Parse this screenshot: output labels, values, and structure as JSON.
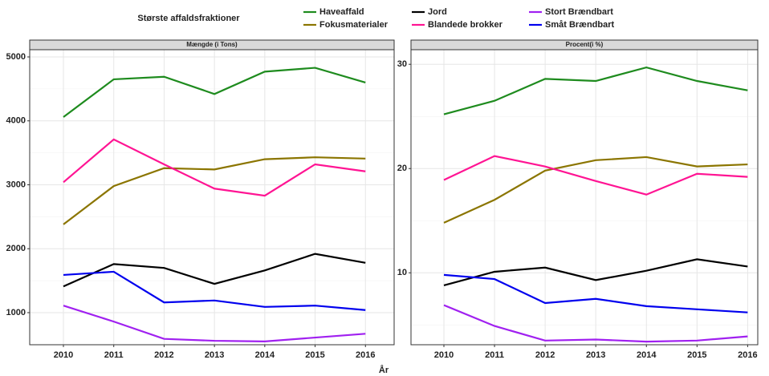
{
  "legend": {
    "title": "Største affaldsfraktioner",
    "position": "top"
  },
  "x_label": "År",
  "chart_data": [
    {
      "type": "line",
      "title": "Mængde (i Tons)",
      "x": [
        2010,
        2011,
        2012,
        2013,
        2014,
        2015,
        2016
      ],
      "xlim": [
        2009.33,
        2016.57
      ],
      "xticks": [
        2010,
        2011,
        2012,
        2013,
        2014,
        2015,
        2016
      ],
      "ylim": [
        498,
        5113
      ],
      "yticks": [
        1000,
        2000,
        3000,
        4000,
        5000
      ],
      "grid": true,
      "series": [
        {
          "name": "Haveaffald",
          "color": "#1e8b1e",
          "values": [
            4060,
            4650,
            4690,
            4420,
            4770,
            4830,
            4600
          ]
        },
        {
          "name": "Fokusmaterialer",
          "color": "#8b7500",
          "values": [
            2380,
            2980,
            3260,
            3240,
            3400,
            3430,
            3410
          ]
        },
        {
          "name": "Jord",
          "color": "#000000",
          "values": [
            1410,
            1760,
            1700,
            1450,
            1660,
            1920,
            1780
          ]
        },
        {
          "name": "Blandede brokker",
          "color": "#ff1493",
          "values": [
            3040,
            3710,
            3320,
            2940,
            2830,
            3320,
            3210
          ]
        },
        {
          "name": "Stort Brændbart",
          "color": "#a020f0",
          "values": [
            1110,
            860,
            590,
            560,
            550,
            610,
            670
          ]
        },
        {
          "name": "Småt Brændbart",
          "color": "#0000ee",
          "values": [
            1590,
            1640,
            1160,
            1190,
            1090,
            1110,
            1040
          ]
        }
      ]
    },
    {
      "type": "line",
      "title": "Procent(i %)",
      "x": [
        2010,
        2011,
        2012,
        2013,
        2014,
        2015,
        2016
      ],
      "xlim": [
        2009.35,
        2016.2
      ],
      "xticks": [
        2010,
        2011,
        2012,
        2013,
        2014,
        2015,
        2016
      ],
      "ylim": [
        3.1,
        31.4
      ],
      "yticks": [
        10,
        20,
        30
      ],
      "grid": true,
      "series": [
        {
          "color": "#1e8b1e",
          "values": [
            25.2,
            26.5,
            28.6,
            28.4,
            29.7,
            28.4,
            27.5
          ]
        },
        {
          "color": "#8b7500",
          "values": [
            14.8,
            17.0,
            19.8,
            20.8,
            21.1,
            20.2,
            20.4
          ]
        },
        {
          "color": "#000000",
          "values": [
            8.8,
            10.1,
            10.5,
            9.3,
            10.2,
            11.3,
            10.6
          ]
        },
        {
          "color": "#ff1493",
          "values": [
            18.9,
            21.2,
            20.2,
            18.8,
            17.5,
            19.5,
            19.2
          ]
        },
        {
          "color": "#a020f0",
          "values": [
            6.9,
            4.9,
            3.5,
            3.6,
            3.4,
            3.5,
            3.9
          ]
        },
        {
          "color": "#0000ee",
          "values": [
            9.8,
            9.4,
            7.1,
            7.5,
            6.8,
            6.5,
            6.2
          ]
        }
      ]
    }
  ]
}
